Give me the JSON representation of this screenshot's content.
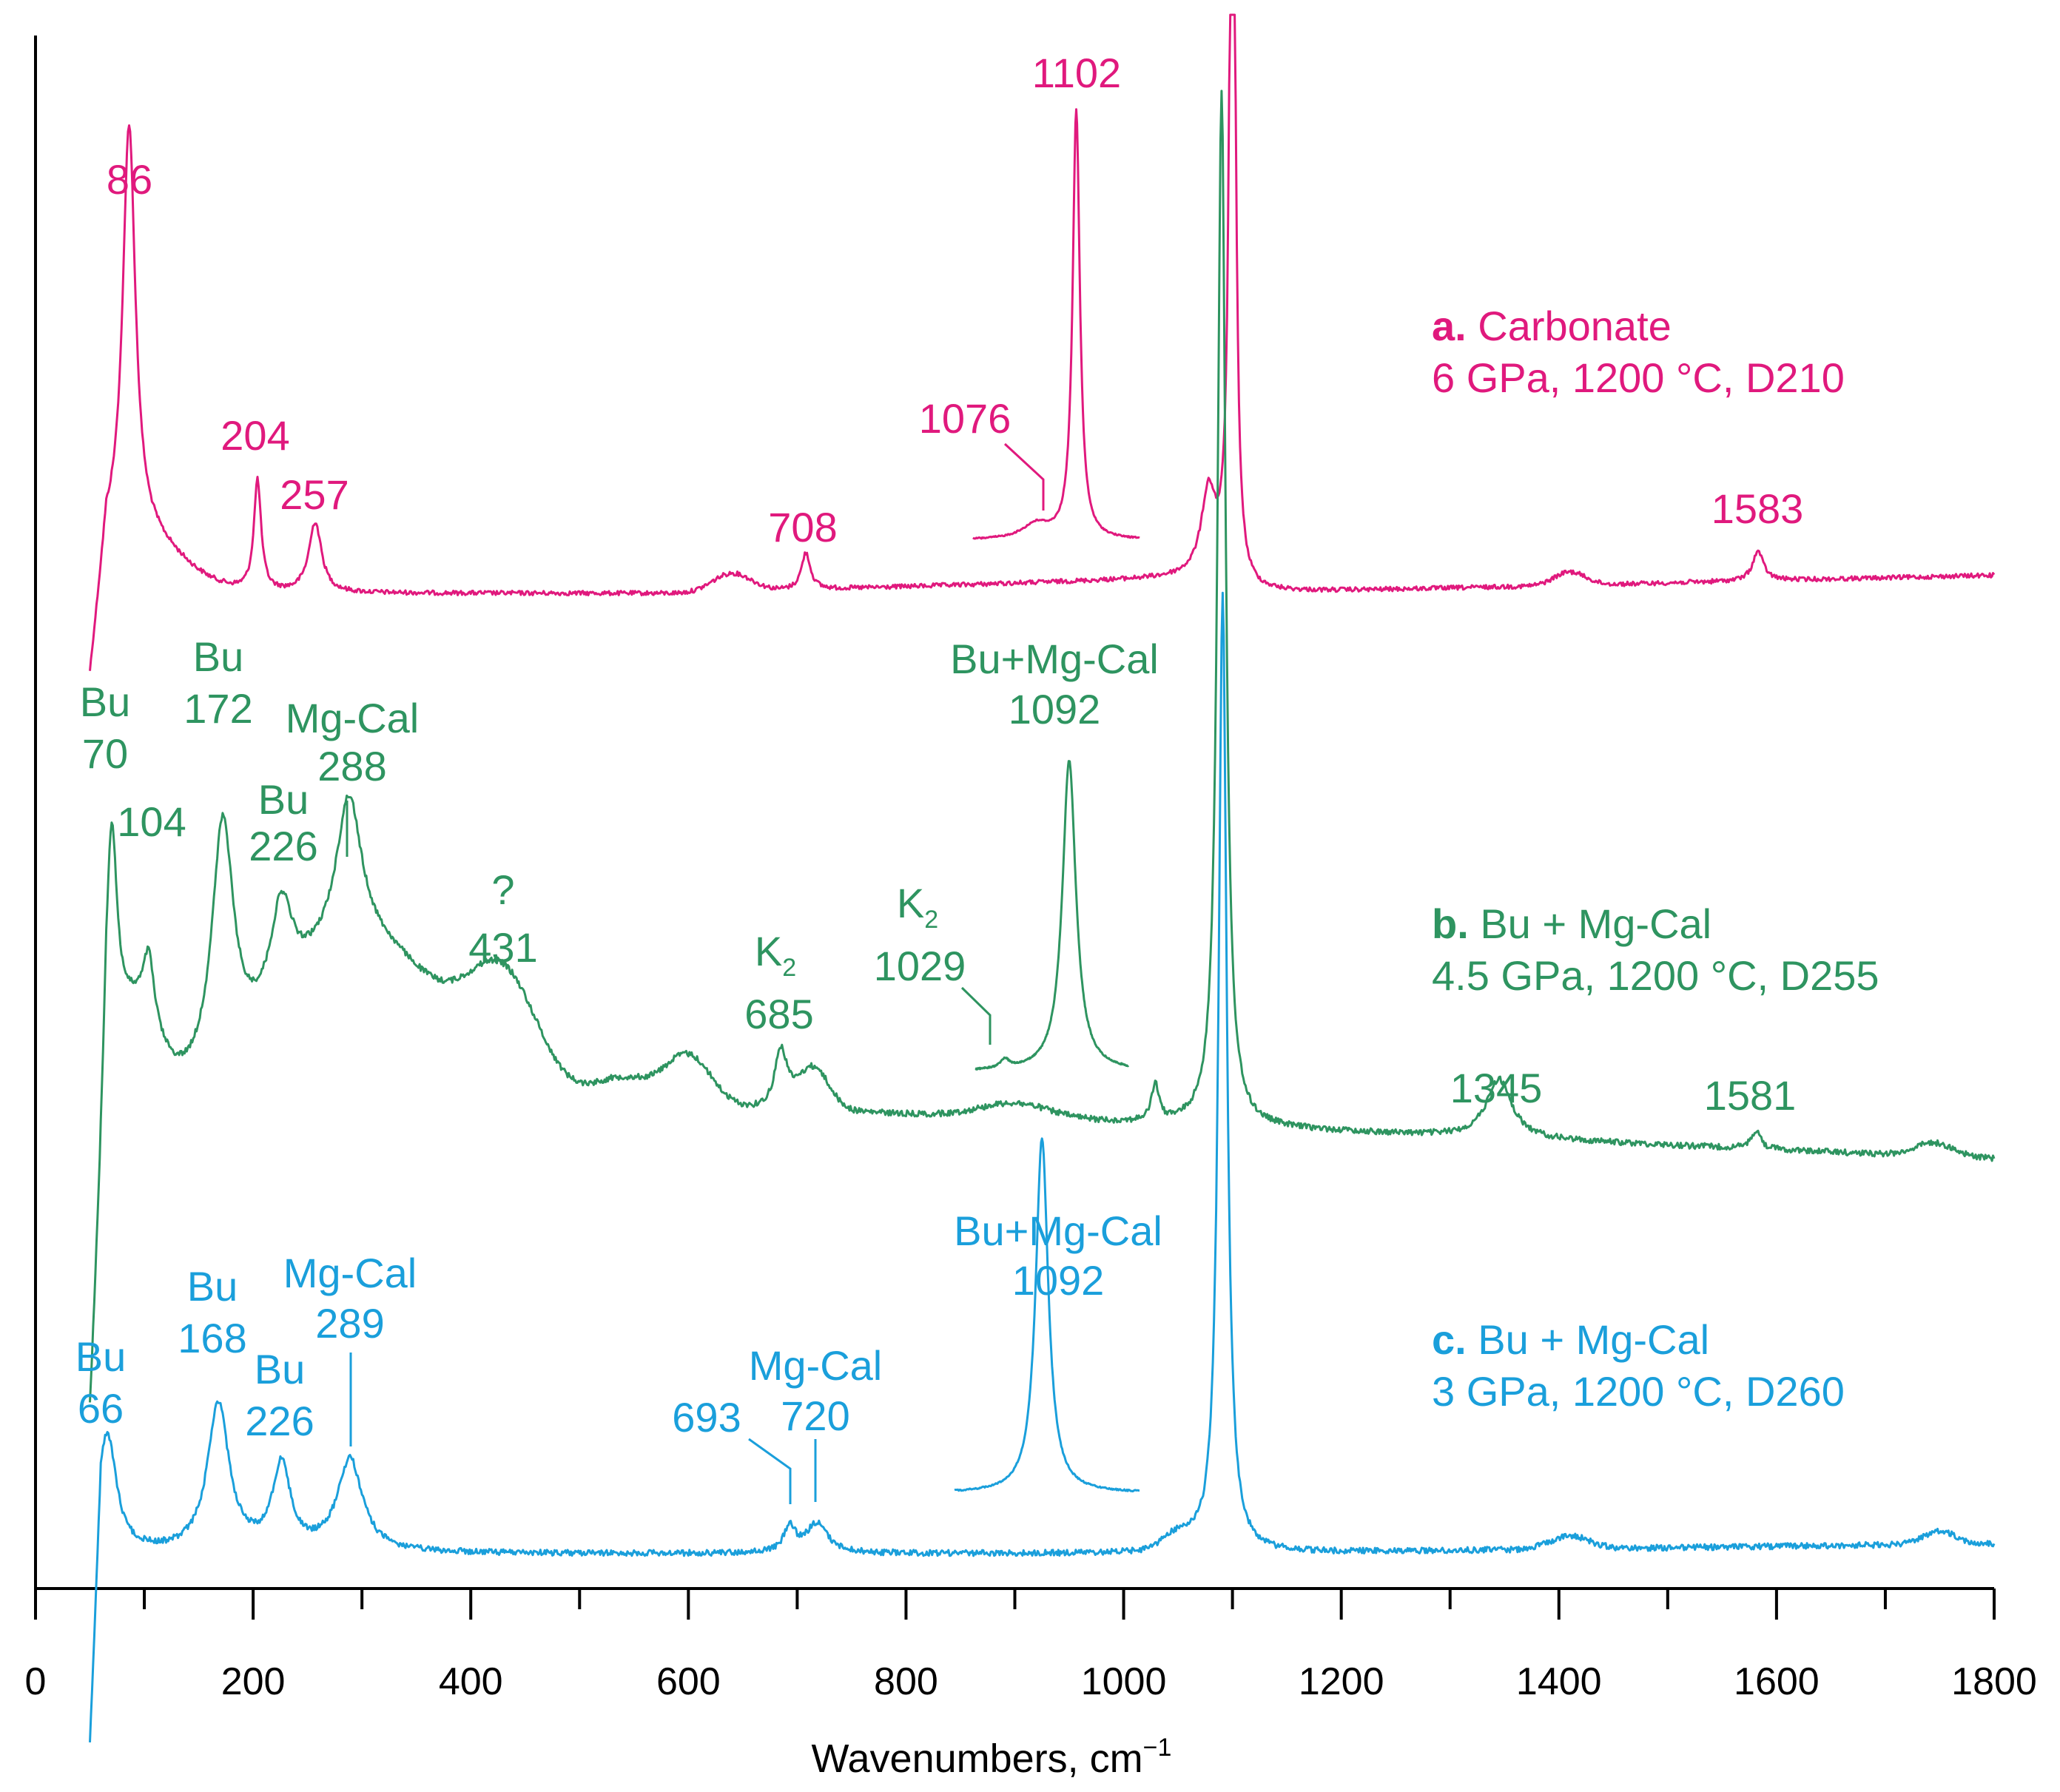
{
  "chart_data": {
    "type": "line",
    "xlabel": "Wavenumbers, cm",
    "xlabel_sup": "−1",
    "xlim": [
      0,
      1800
    ],
    "ylabel": "",
    "xticks": [
      "0",
      "200",
      "400",
      "600",
      "800",
      "1000",
      "1200",
      "1400",
      "1600",
      "1800"
    ],
    "xtick_values": [
      0,
      200,
      400,
      600,
      800,
      1000,
      1200,
      1400,
      1600,
      1800
    ],
    "series": [
      {
        "key": "a",
        "letter": "a.",
        "name": "Carbonate",
        "conditions": "6 GPa, 1200 °C, D210",
        "color": "#e0197d",
        "peaks": [
          {
            "label": "86",
            "value": 86
          },
          {
            "label": "204",
            "value": 204
          },
          {
            "label": "257",
            "value": 257
          },
          {
            "label": "708",
            "value": 708
          },
          {
            "label": "1076",
            "value": 1076
          },
          {
            "label": "1102",
            "value": 1102
          },
          {
            "label": "1583",
            "value": 1583
          }
        ],
        "inset": "zoomed 1076/1102 region"
      },
      {
        "key": "b",
        "letter": "b.",
        "name": "Bu + Mg-Cal",
        "conditions": "4.5 GPa, 1200 °C, D255",
        "color": "#2e9460",
        "peaks": [
          {
            "label": "Bu 70",
            "value": 70
          },
          {
            "label": "104",
            "value": 104
          },
          {
            "label": "Bu 172",
            "value": 172
          },
          {
            "label": "Bu 226",
            "value": 226
          },
          {
            "label": "Mg-Cal 288",
            "value": 288
          },
          {
            "label": "? 431",
            "value": 431
          },
          {
            "label": "K2 685",
            "value": 685
          },
          {
            "label": "K2 1029",
            "value": 1029
          },
          {
            "label": "Bu+Mg-Cal 1092",
            "value": 1092
          },
          {
            "label": "1345",
            "value": 1345
          },
          {
            "label": "1581",
            "value": 1581
          }
        ],
        "inset": "zoomed 1029/1092 region"
      },
      {
        "key": "c",
        "letter": "c.",
        "name": "Bu + Mg-Cal",
        "conditions": "3 GPa, 1200 °C, D260",
        "color": "#1a9fdb",
        "peaks": [
          {
            "label": "Bu 66",
            "value": 66
          },
          {
            "label": "Bu 168",
            "value": 168
          },
          {
            "label": "Bu 226",
            "value": 226
          },
          {
            "label": "Mg-Cal 289",
            "value": 289
          },
          {
            "label": "693",
            "value": 693
          },
          {
            "label": "Mg-Cal 720",
            "value": 720
          },
          {
            "label": "Bu+Mg-Cal 1092",
            "value": 1092
          }
        ],
        "inset": "zoomed 1092 region"
      }
    ]
  },
  "labels": {
    "a": {
      "p86": "86",
      "p204": "204",
      "p257": "257",
      "p708": "708",
      "p1076": "1076",
      "p1102": "1102",
      "p1583": "1583",
      "letter": "a.",
      "name": " Carbonate",
      "cond": "6 GPa, 1200 °C, D210"
    },
    "b": {
      "bu70a": "Bu",
      "bu70b": "70",
      "p104": "104",
      "bu172a": "Bu",
      "bu172b": "172",
      "bu226a": "Bu",
      "bu226b": "226",
      "mg288a": "Mg-Cal",
      "mg288b": "288",
      "q431a": "?",
      "q431b": "431",
      "k685": "K",
      "k685sub": "2",
      "p685": "685",
      "k1029": "K",
      "k1029sub": "2",
      "p1029": "1029",
      "bm1092a": "Bu+Mg-Cal",
      "bm1092b": "1092",
      "p1345": "1345",
      "p1581": "1581",
      "letter": "b.",
      "name": " Bu + Mg-Cal",
      "cond": "4.5 GPa, 1200 °C, D255"
    },
    "c": {
      "bu66a": "Bu",
      "bu66b": "66",
      "bu168a": "Bu",
      "bu168b": "168",
      "bu226a": "Bu",
      "bu226b": "226",
      "mg289a": "Mg-Cal",
      "mg289b": "289",
      "p693": "693",
      "mg720a": "Mg-Cal",
      "mg720b": "720",
      "bm1092a": "Bu+Mg-Cal",
      "bm1092b": "1092",
      "letter": "c.",
      "name": " Bu + Mg-Cal",
      "cond": "3 GPa, 1200 °C, D260"
    }
  }
}
